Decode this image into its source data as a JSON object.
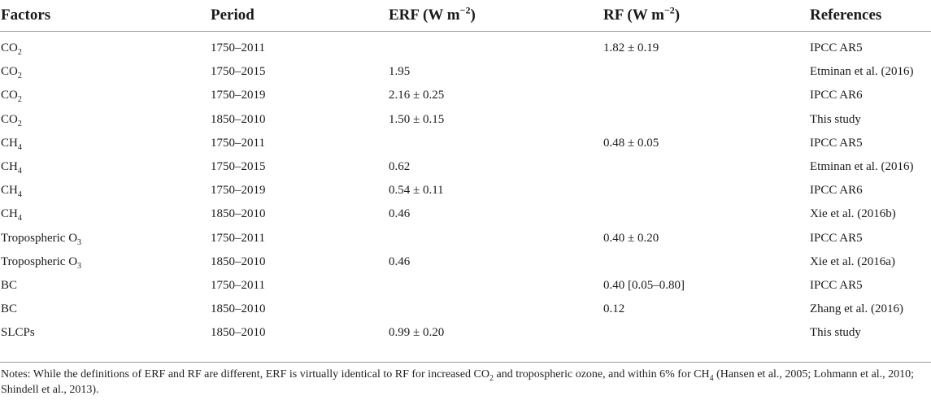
{
  "table": {
    "headers": {
      "factors": "Factors",
      "period": "Period",
      "erf": "ERF  (W m",
      "erf_exp": "−2",
      "erf_close": ")",
      "rf": "RF  (W m",
      "rf_exp": "−2",
      "rf_close": ")",
      "references": "References"
    },
    "rows": [
      {
        "factor": "CO",
        "sub": "2",
        "period": "1750–2011",
        "erf": "",
        "rf": "1.82 ± 0.19",
        "ref": "IPCC AR5"
      },
      {
        "factor": "CO",
        "sub": "2",
        "period": "1750–2015",
        "erf": "1.95",
        "rf": "",
        "ref": "Etminan et al. (2016)"
      },
      {
        "factor": "CO",
        "sub": "2",
        "period": "1750–2019",
        "erf": "2.16 ± 0.25",
        "rf": "",
        "ref": "IPCC AR6"
      },
      {
        "factor": "CO",
        "sub": "2",
        "period": "1850–2010",
        "erf": "1.50 ± 0.15",
        "rf": "",
        "ref": "This study"
      },
      {
        "factor": "CH",
        "sub": "4",
        "period": "1750–2011",
        "erf": "",
        "rf": "0.48 ± 0.05",
        "ref": "IPCC AR5"
      },
      {
        "factor": "CH",
        "sub": "4",
        "period": "1750–2015",
        "erf": "0.62",
        "rf": "",
        "ref": "Etminan et al. (2016)"
      },
      {
        "factor": "CH",
        "sub": "4",
        "period": "1750–2019",
        "erf": "0.54 ± 0.11",
        "rf": "",
        "ref": "IPCC AR6"
      },
      {
        "factor": "CH",
        "sub": "4",
        "period": "1850–2010",
        "erf": "0.46",
        "rf": "",
        "ref": "Xie et al. (2016b)"
      },
      {
        "factor": "Tropospheric O",
        "sub": "3",
        "period": "1750–2011",
        "erf": "",
        "rf": "0.40 ± 0.20",
        "ref": "IPCC AR5"
      },
      {
        "factor": "Tropospheric O",
        "sub": "3",
        "period": "1850–2010",
        "erf": "0.46",
        "rf": "",
        "ref": "Xie et al. (2016a)"
      },
      {
        "factor": "BC",
        "sub": "",
        "period": "1750–2011",
        "erf": "",
        "rf": "0.40 [0.05–0.80]",
        "ref": "IPCC AR5"
      },
      {
        "factor": "BC",
        "sub": "",
        "period": "1850–2010",
        "erf": "",
        "rf": "0.12",
        "ref": "Zhang et al. (2016)"
      },
      {
        "factor": "SLCPs",
        "sub": "",
        "period": "1850–2010",
        "erf": "0.99 ± 0.20",
        "rf": "",
        "ref": "This study"
      }
    ]
  },
  "notes": {
    "part1": "Notes: While the definitions of ERF and RF are different, ERF is virtually identical to RF for increased CO",
    "sub1": "2",
    "part2": " and tropospheric ozone, and within 6% for CH",
    "sub2": "4",
    "part3": " (Hansen et al., 2005; Lohmann et al., 2010; Shindell et al., 2013)."
  }
}
